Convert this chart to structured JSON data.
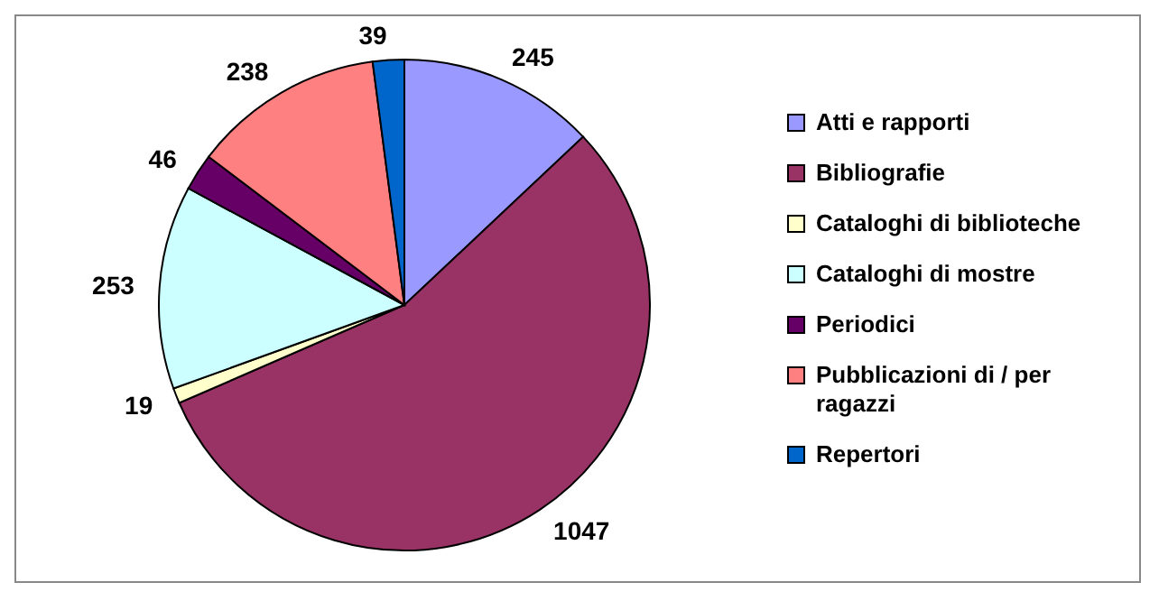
{
  "chart_data": {
    "type": "pie",
    "categories": [
      "Atti e rapporti",
      "Bibliografie",
      "Cataloghi di biblioteche",
      "Cataloghi di mostre",
      "Periodici",
      "Pubblicazioni di / per ragazzi",
      "Repertori"
    ],
    "values": [
      245,
      1047,
      19,
      253,
      46,
      238,
      39
    ],
    "colors": [
      "#9999ff",
      "#993366",
      "#ffffcc",
      "#ccffff",
      "#660066",
      "#ff8080",
      "#0066cc"
    ],
    "data_labels": true,
    "legend": "right"
  }
}
